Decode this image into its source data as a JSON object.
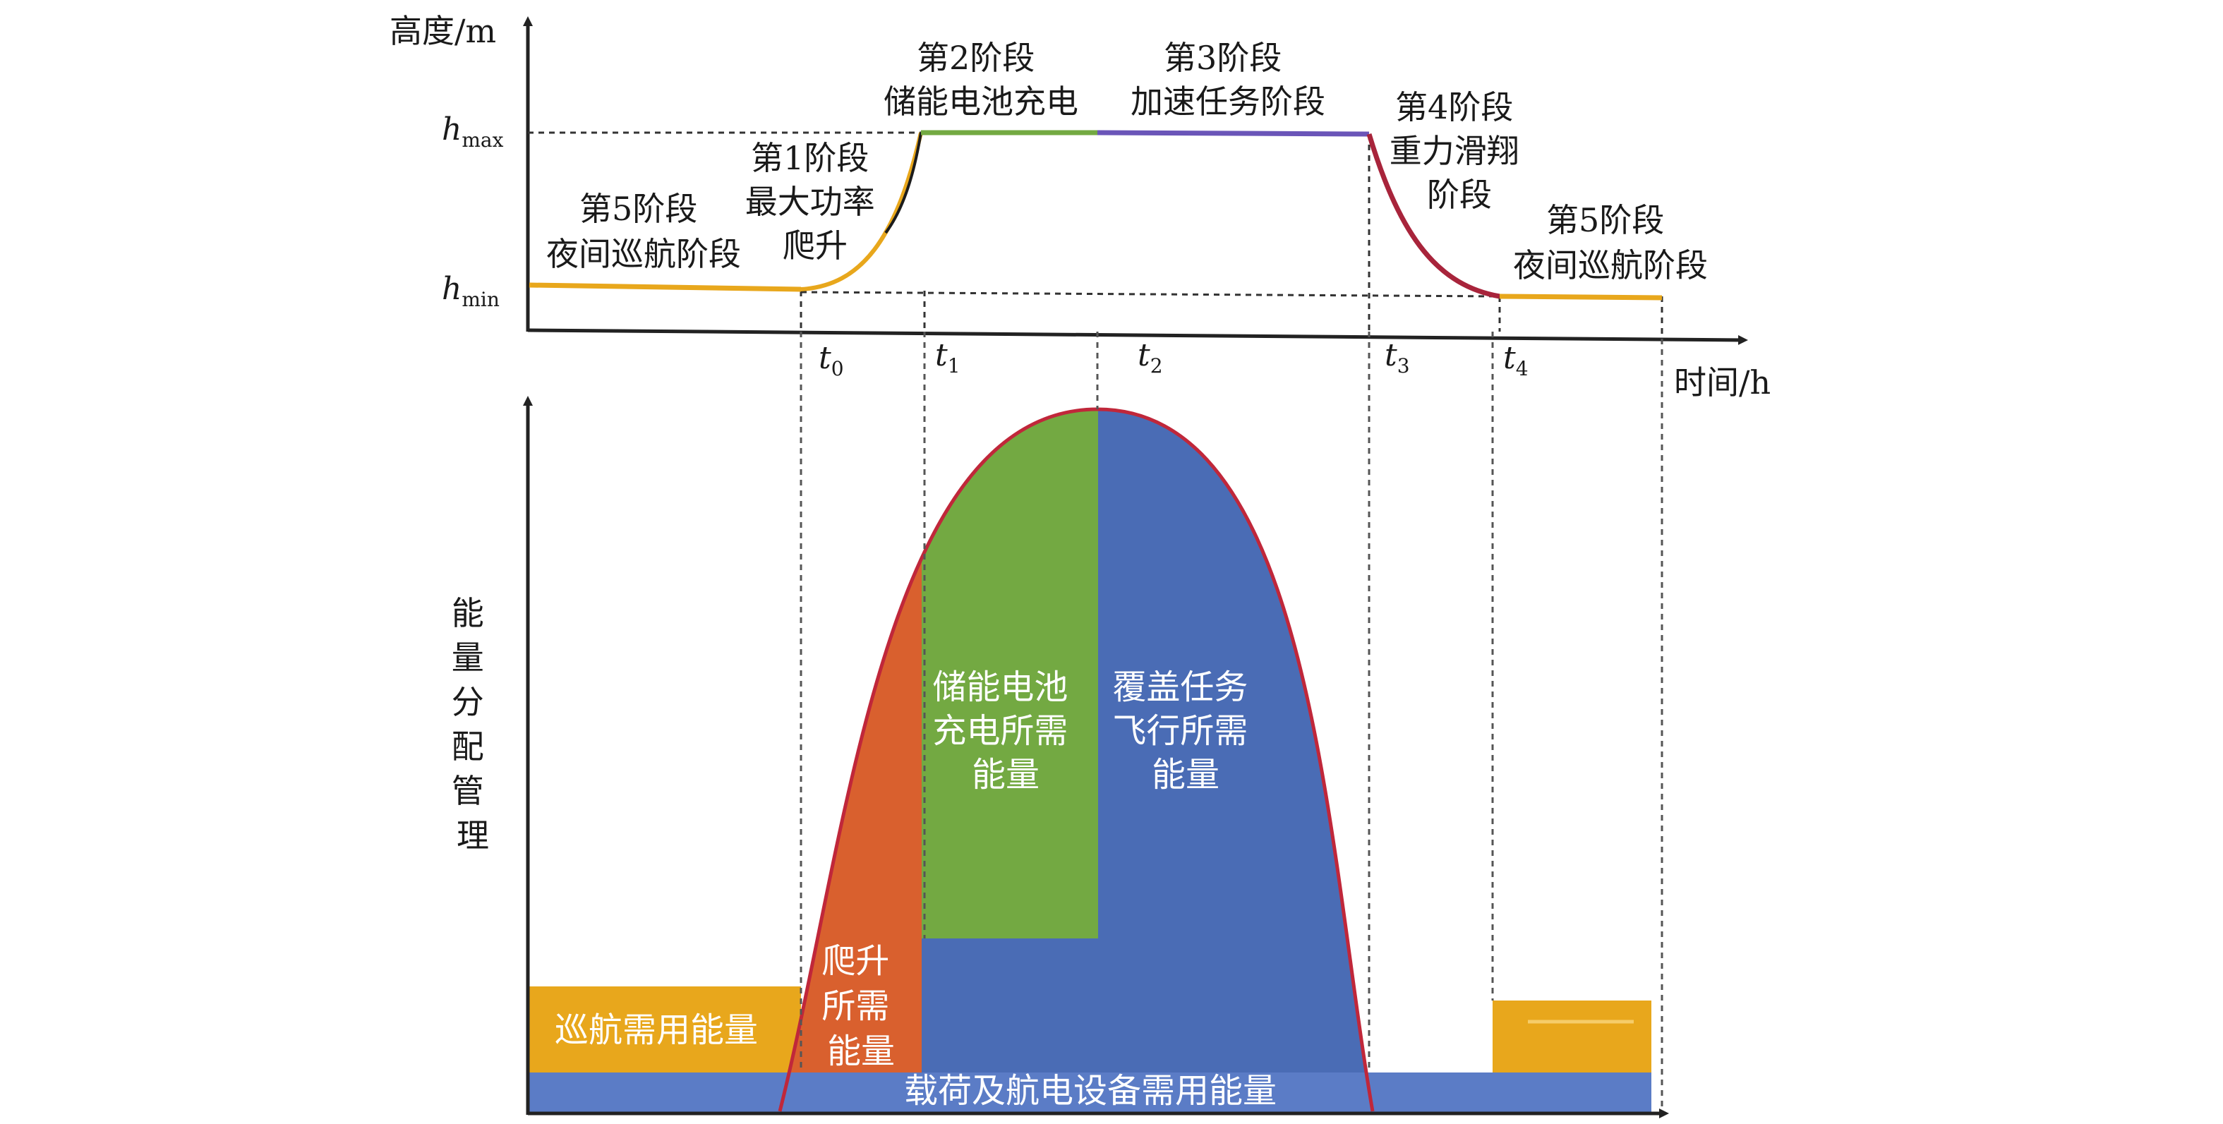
{
  "axes": {
    "top_y_label": "高度/m",
    "top_x_label": "时间/h",
    "bottom_y_label_chars": [
      "能",
      "量",
      "分",
      "配",
      "管",
      "理"
    ],
    "h_max_main": "h",
    "h_max_sub": "max",
    "h_min_main": "h",
    "h_min_sub": "min",
    "time_ticks": [
      {
        "main": "t",
        "sub": "0"
      },
      {
        "main": "t",
        "sub": "1"
      },
      {
        "main": "t",
        "sub": "2"
      },
      {
        "main": "t",
        "sub": "3"
      },
      {
        "main": "t",
        "sub": "4"
      }
    ]
  },
  "phases": {
    "phase5_left": [
      "第5阶段",
      "夜间巡航阶段"
    ],
    "phase1": [
      "第1阶段",
      "最大功率",
      "爬升"
    ],
    "phase2": [
      "第2阶段",
      "储能电池充电"
    ],
    "phase3": [
      "第3阶段",
      "加速任务阶段"
    ],
    "phase4": [
      "第4阶段",
      "重力滑翔",
      "阶段"
    ],
    "phase5_right": [
      "第5阶段",
      "夜间巡航阶段"
    ]
  },
  "energy_regions": {
    "cruise": "巡航需用能量",
    "climb": [
      "爬升",
      "所需",
      "能量"
    ],
    "charge": [
      "储能电池",
      "充电所需",
      "能量"
    ],
    "mission": [
      "覆盖任务",
      "飞行所需",
      "能量"
    ],
    "payload": "载荷及航电设备需用能量"
  },
  "colors": {
    "cruise": "#E8A71C",
    "climb": "#D9602E",
    "charge": "#73A942",
    "mission": "#4A6CB5",
    "payload": "#5B7CC6",
    "curve": "#C0273A",
    "axis": "#222222"
  }
}
